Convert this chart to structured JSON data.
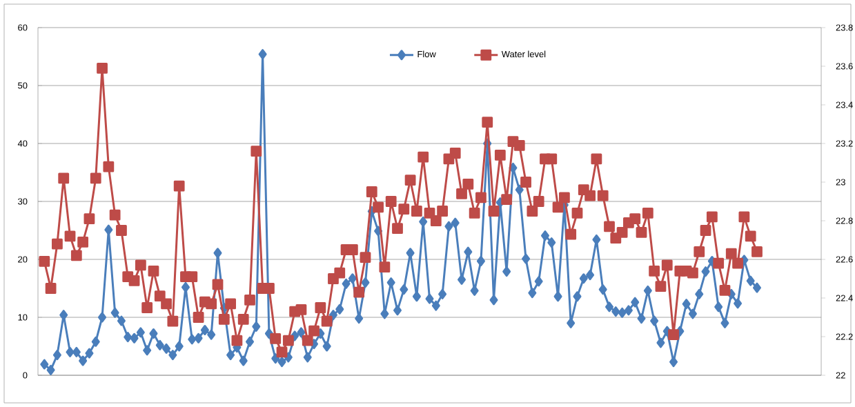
{
  "chart_data": {
    "type": "line",
    "categories": [
      null,
      null,
      null,
      null,
      null,
      null,
      null,
      null,
      null,
      null,
      null,
      null,
      null,
      null,
      null,
      null,
      null,
      null,
      null,
      null,
      null,
      null,
      null,
      null,
      null,
      null,
      null,
      null,
      null,
      null,
      null,
      null,
      null,
      null,
      null,
      null,
      null,
      null,
      null,
      null,
      null,
      null,
      null,
      null,
      null,
      null,
      null,
      null,
      null,
      null,
      null,
      null,
      null,
      null,
      null,
      null,
      null,
      null,
      null,
      null,
      null,
      null,
      null,
      null,
      null,
      null,
      null,
      null,
      null,
      null,
      null,
      null,
      null,
      null,
      null,
      null,
      null,
      null,
      null,
      null,
      null,
      null,
      null,
      null,
      null,
      null,
      null,
      null,
      null,
      null,
      null,
      null,
      null,
      null,
      null,
      null,
      null,
      null,
      null,
      null,
      null,
      null,
      null,
      null,
      null,
      null,
      null,
      null,
      null,
      null,
      null,
      null
    ],
    "legend": "top",
    "grid": "y",
    "ylim": [
      0,
      60
    ],
    "yticks": [
      0,
      10,
      20,
      30,
      40,
      50,
      60
    ],
    "y2lim": [
      22,
      23.8
    ],
    "y2ticks": [
      22,
      22.2,
      22.4,
      22.6,
      22.8,
      23,
      23.2,
      23.4,
      23.6,
      23.8
    ],
    "series": [
      {
        "name": "Flow",
        "color": "#4a7ebb",
        "marker": "diamond",
        "values": [
          1.9,
          0.9,
          3.5,
          10.4,
          4.0,
          4.0,
          2.5,
          3.8,
          5.8,
          10.0,
          25.1,
          10.8,
          9.4,
          6.6,
          6.4,
          7.4,
          4.3,
          7.2,
          5.2,
          4.6,
          3.5,
          5.0,
          15.2,
          6.2,
          6.4,
          7.8,
          7.0,
          21.1,
          11.6,
          3.5,
          4.8,
          2.5,
          5.8,
          8.4,
          55.4,
          7.2,
          2.9,
          2.3,
          3.1,
          6.8,
          7.4,
          3.1,
          5.4,
          7.2,
          5.0,
          10.4,
          11.4,
          15.8,
          16.7,
          9.8,
          16.0,
          28.3,
          24.9,
          10.6,
          16.0,
          11.2,
          14.8,
          21.1,
          13.6,
          26.5,
          13.2,
          12.0,
          14.0,
          25.7,
          26.3,
          16.5,
          21.3,
          14.6,
          19.7,
          40.0,
          13.0,
          29.8,
          17.9,
          35.8,
          32.0,
          20.1,
          14.2,
          16.2,
          24.1,
          22.9,
          13.6,
          29.4,
          9.0,
          13.6,
          16.7,
          17.3,
          23.4,
          14.8,
          11.8,
          11.0,
          10.8,
          11.2,
          12.6,
          9.8,
          14.6,
          9.4,
          5.6,
          7.6,
          2.3,
          7.6,
          12.3,
          10.6,
          14.0,
          17.9,
          19.7,
          11.8,
          9.0,
          14.0,
          12.4,
          19.9,
          16.3,
          15.1
        ]
      },
      {
        "name": "Water level",
        "color": "#be4b48",
        "marker": "square",
        "axis": "y2",
        "values": [
          22.59,
          22.45,
          22.68,
          23.02,
          22.72,
          22.62,
          22.69,
          22.81,
          23.02,
          23.59,
          23.08,
          22.83,
          22.75,
          22.51,
          22.49,
          22.57,
          22.35,
          22.54,
          22.41,
          22.37,
          22.28,
          22.98,
          22.51,
          22.51,
          22.3,
          22.38,
          22.37,
          22.47,
          22.29,
          22.37,
          22.18,
          22.29,
          22.39,
          23.16,
          22.45,
          22.45,
          22.19,
          22.12,
          22.18,
          22.33,
          22.34,
          22.18,
          22.23,
          22.35,
          22.28,
          22.5,
          22.53,
          22.65,
          22.65,
          22.43,
          22.61,
          22.95,
          22.87,
          22.56,
          22.9,
          22.76,
          22.86,
          23.01,
          22.85,
          23.13,
          22.84,
          22.8,
          22.85,
          23.12,
          23.15,
          22.94,
          22.99,
          22.84,
          22.92,
          23.31,
          22.85,
          23.14,
          22.91,
          23.21,
          23.19,
          23.0,
          22.85,
          22.9,
          23.12,
          23.12,
          22.87,
          22.92,
          22.73,
          22.84,
          22.96,
          22.93,
          23.12,
          22.93,
          22.77,
          22.71,
          22.74,
          22.79,
          22.81,
          22.74,
          22.84,
          22.54,
          22.46,
          22.57,
          22.21,
          22.54,
          22.54,
          22.53,
          22.64,
          22.75,
          22.82,
          22.58,
          22.44,
          22.63,
          22.58,
          22.82,
          22.72,
          22.64
        ]
      }
    ]
  }
}
